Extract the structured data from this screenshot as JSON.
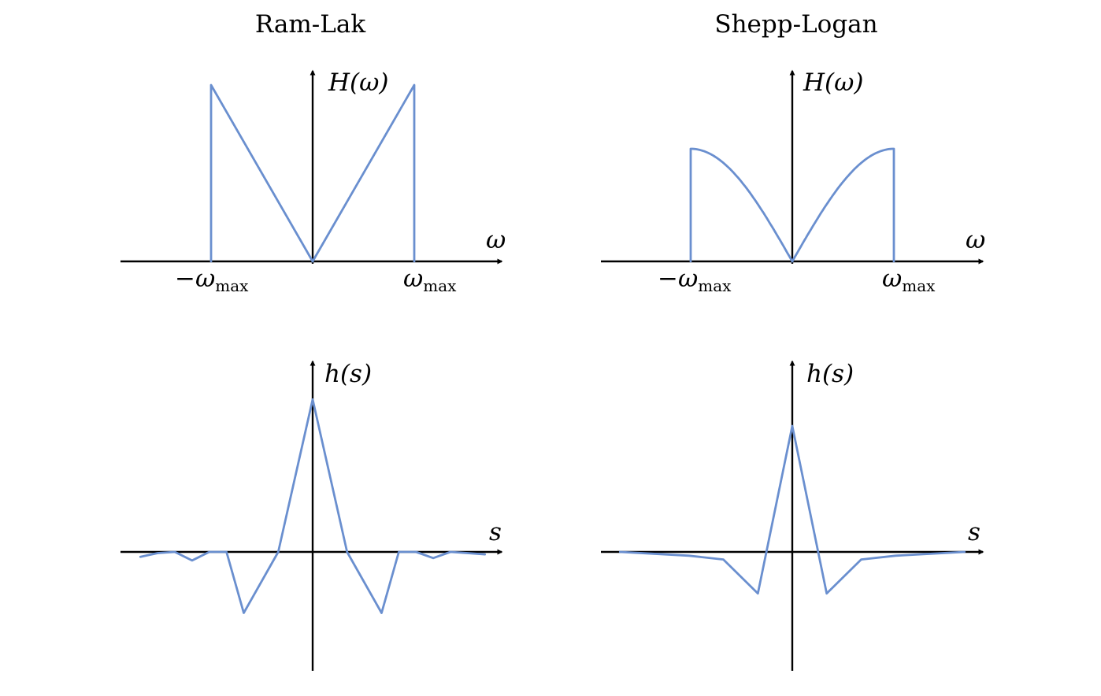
{
  "colors": {
    "curve": "#6a8fcf",
    "axis": "#000000"
  },
  "panels": [
    {
      "title": "Ram-Lak",
      "freq": {
        "ylabel": "H(ω)",
        "xlabel": "ω",
        "tick_neg": "−ω",
        "tick_pos": "ω",
        "tick_sub": "max",
        "shape": "ramlak"
      },
      "spatial": {
        "ylabel": "h(s)",
        "xlabel": "s",
        "points": [
          [
            -5,
            -0.04
          ],
          [
            -4.5,
            -0.01
          ],
          [
            -4,
            0
          ],
          [
            -3.5,
            -0.07
          ],
          [
            -3,
            0
          ],
          [
            -2.5,
            -0.0
          ],
          [
            -2,
            -0.5
          ],
          [
            -1,
            0
          ],
          [
            0,
            1.25
          ],
          [
            1,
            0
          ],
          [
            2,
            -0.5
          ],
          [
            2.5,
            0
          ],
          [
            3,
            0
          ],
          [
            3.5,
            -0.05
          ],
          [
            4,
            0
          ],
          [
            4.5,
            -0.01
          ],
          [
            5,
            -0.02
          ]
        ]
      }
    },
    {
      "title": "Shepp-Logan",
      "freq": {
        "ylabel": "H(ω)",
        "xlabel": "ω",
        "tick_neg": "−ω",
        "tick_pos": "ω",
        "tick_sub": "max",
        "shape": "shepplogan"
      },
      "spatial": {
        "ylabel": "h(s)",
        "xlabel": "s",
        "points": [
          [
            -5,
            0
          ],
          [
            -3,
            -0.03
          ],
          [
            -2,
            -0.06
          ],
          [
            -1,
            -0.33
          ],
          [
            0,
            1.0
          ],
          [
            1,
            -0.33
          ],
          [
            2,
            -0.06
          ],
          [
            3,
            -0.03
          ],
          [
            5,
            0
          ]
        ]
      }
    }
  ]
}
